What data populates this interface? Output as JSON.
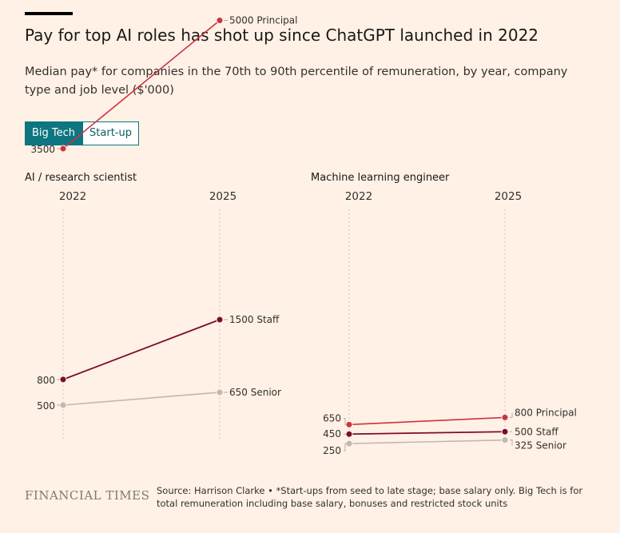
{
  "header": {
    "title": "Pay for top AI roles has shot up since ChatGPT launched in 2022",
    "subtitle": "Median pay* for companies in the 70th to 90th percentile of remuneration, by year, company type and job level ($'000)"
  },
  "toggle": {
    "options": [
      "Big Tech",
      "Start-up"
    ],
    "selected": "Big Tech"
  },
  "colors": {
    "background": "#fff1e5",
    "principal": "#cc3340",
    "staff": "#7d0b2e",
    "senior": "#c2b7b1",
    "accent": "#0d7680"
  },
  "chart_data": [
    {
      "type": "slope",
      "title": "AI / research scientist",
      "x": [
        "2022",
        "2025"
      ],
      "y_tick_labels": [
        "3500",
        "800",
        "500"
      ],
      "series": [
        {
          "name": "Principal",
          "values": [
            3500,
            5000
          ],
          "end_label": "5000 Principal"
        },
        {
          "name": "Staff",
          "values": [
            800,
            1500
          ],
          "end_label": "1500 Staff"
        },
        {
          "name": "Senior",
          "values": [
            500,
            650
          ],
          "end_label": "650 Senior"
        }
      ],
      "start_labels": [
        "3500",
        "800",
        "500"
      ]
    },
    {
      "type": "slope",
      "title": "Machine learning engineer",
      "x": [
        "2022",
        "2025"
      ],
      "series": [
        {
          "name": "Principal",
          "values": [
            650,
            800
          ],
          "end_label": "800 Principal"
        },
        {
          "name": "Staff",
          "values": [
            450,
            500
          ],
          "end_label": "500 Staff"
        },
        {
          "name": "Senior",
          "values": [
            250,
            325
          ],
          "end_label": "325 Senior"
        }
      ],
      "start_labels": [
        "650",
        "450",
        "250"
      ]
    }
  ],
  "footer": {
    "logo": "FINANCIAL TIMES",
    "source": "Source: Harrison Clarke • *Start-ups from seed to late stage; base salary only. Big Tech is for total remuneration including base salary, bonuses and restricted stock units"
  }
}
